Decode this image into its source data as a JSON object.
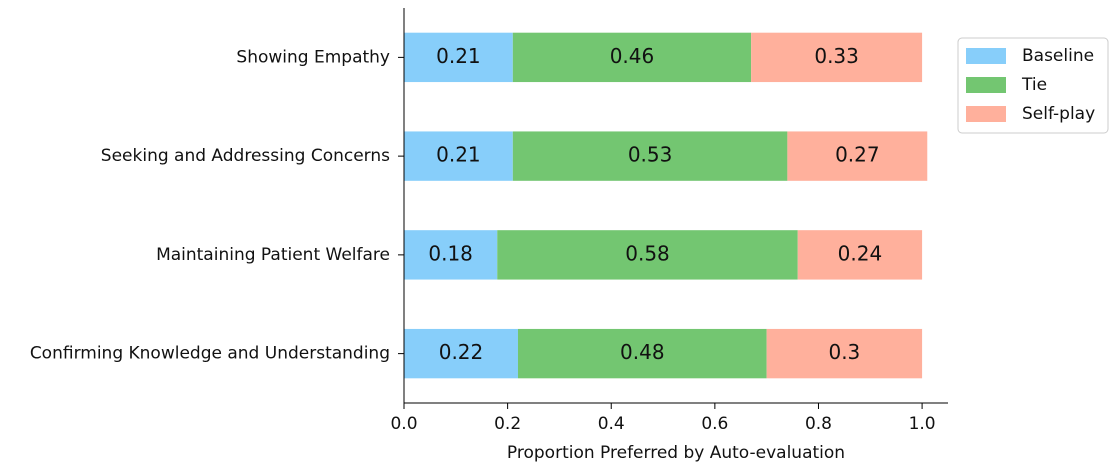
{
  "chart_data": {
    "type": "stacked-barh",
    "xlabel": "Proportion Preferred by Auto-evaluation",
    "categories": [
      "Showing Empathy",
      "Seeking and Addressing Concerns",
      "Maintaining Patient Welfare",
      "Confirming Knowledge and Understanding"
    ],
    "series": [
      {
        "name": "Baseline",
        "color": "#87cefa",
        "values": [
          0.21,
          0.21,
          0.18,
          0.22
        ]
      },
      {
        "name": "Tie",
        "color": "#73c671",
        "values": [
          0.46,
          0.53,
          0.58,
          0.48
        ]
      },
      {
        "name": "Self-play",
        "color": "#ffb09c",
        "values": [
          0.33,
          0.27,
          0.24,
          0.3
        ]
      }
    ],
    "xlim": [
      0,
      1.05
    ],
    "xticks": [
      {
        "value": 0,
        "label": "0.0"
      },
      0.2,
      0.4,
      0.6,
      0.8,
      {
        "value": 1,
        "label": "1.0"
      }
    ],
    "legend": "upper right outside"
  }
}
